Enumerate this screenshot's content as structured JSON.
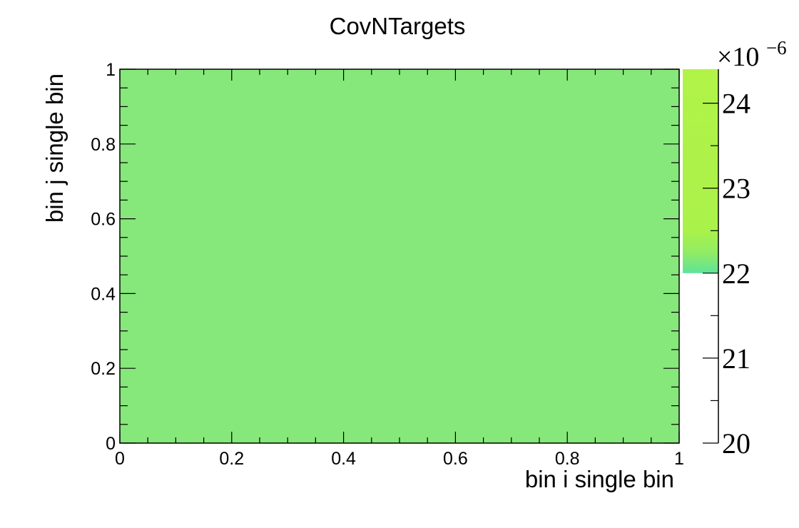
{
  "chart_data": {
    "type": "heatmap",
    "title": "CovNTargets",
    "xlabel": "bin i single bin",
    "ylabel": "bin j single bin",
    "xlim": [
      0,
      1
    ],
    "ylim": [
      0,
      1
    ],
    "x_ticks": [
      {
        "value": 0,
        "label": "0"
      },
      {
        "value": 0.2,
        "label": "0.2"
      },
      {
        "value": 0.4,
        "label": "0.4"
      },
      {
        "value": 0.6,
        "label": "0.6"
      },
      {
        "value": 0.8,
        "label": "0.8"
      },
      {
        "value": 1,
        "label": "1"
      }
    ],
    "y_ticks": [
      {
        "value": 0,
        "label": "0"
      },
      {
        "value": 0.2,
        "label": "0.2"
      },
      {
        "value": 0.4,
        "label": "0.4"
      },
      {
        "value": 0.6,
        "label": "0.6"
      },
      {
        "value": 0.8,
        "label": "0.8"
      },
      {
        "value": 1,
        "label": "1"
      }
    ],
    "cells": [
      {
        "x_range": [
          0,
          1
        ],
        "y_range": [
          0,
          1
        ],
        "value": 2.22e-05,
        "color": "#86e87a"
      }
    ],
    "colorbar": {
      "multiplier_base": "×10",
      "multiplier_exponent": "−6",
      "range": [
        20,
        24.4
      ],
      "filled_range": [
        22,
        24.4
      ],
      "ticks": [
        {
          "value": 20,
          "label": "20"
        },
        {
          "value": 21,
          "label": "21"
        },
        {
          "value": 22,
          "label": "22"
        },
        {
          "value": 23,
          "label": "23"
        },
        {
          "value": 24,
          "label": "24"
        }
      ],
      "gradient": [
        {
          "value": 22.0,
          "color": "#5ee39a"
        },
        {
          "value": 22.25,
          "color": "#92ec62"
        },
        {
          "value": 22.5,
          "color": "#aaf24a"
        },
        {
          "value": 24.4,
          "color": "#b2f348"
        }
      ]
    },
    "grid": false,
    "legend": "none"
  }
}
